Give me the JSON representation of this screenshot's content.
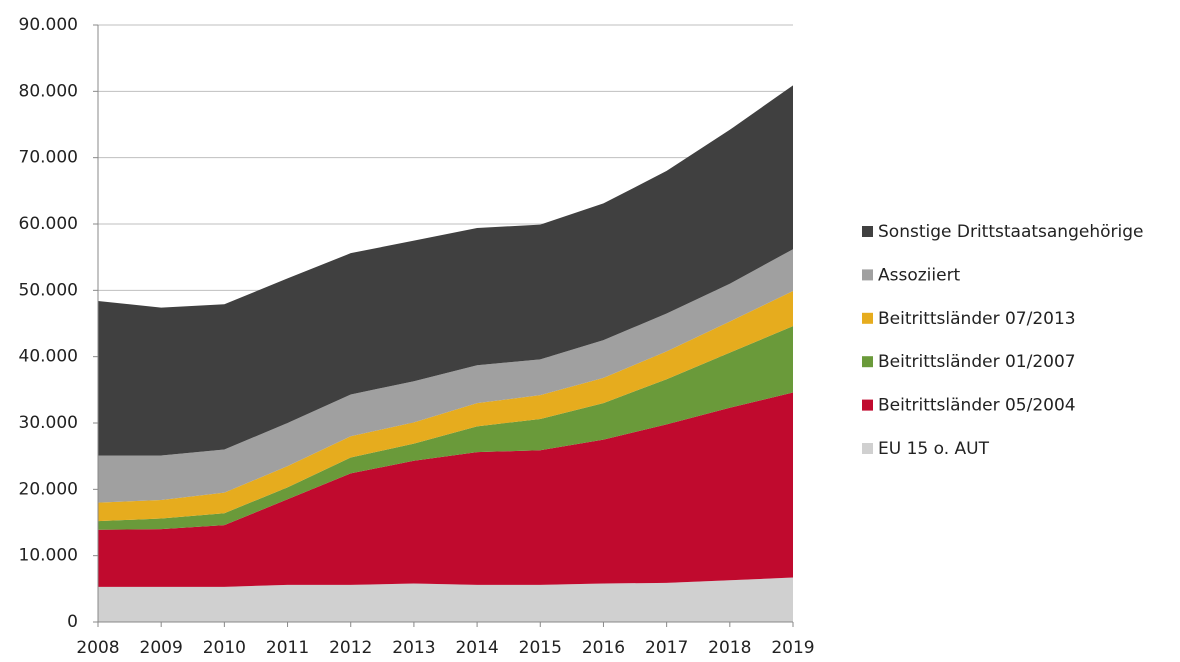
{
  "chart_data": {
    "type": "stacked_area",
    "categories": [
      "2008",
      "2009",
      "2010",
      "2011",
      "2012",
      "2013",
      "2014",
      "2015",
      "2016",
      "2017",
      "2018",
      "2019"
    ],
    "series": [
      {
        "name": "EU 15 o. AUT",
        "color": "#d0d0d0",
        "values": [
          5300,
          5300,
          5300,
          5600,
          5600,
          5800,
          5600,
          5600,
          5800,
          5900,
          6300,
          6700
        ]
      },
      {
        "name": "Beitrittsländer 05/2004",
        "color": "#c00a2e",
        "values": [
          8600,
          8700,
          9300,
          12900,
          16800,
          18500,
          20000,
          20300,
          21700,
          23900,
          26000,
          27900
        ]
      },
      {
        "name": "Beitrittsländer 01/2007",
        "color": "#6a9a3a",
        "values": [
          1300,
          1600,
          1800,
          1800,
          2400,
          2600,
          3900,
          4700,
          5500,
          6800,
          8300,
          10000
        ]
      },
      {
        "name": "Beitrittsländer 07/2013",
        "color": "#e6ac1e",
        "values": [
          2800,
          2800,
          3100,
          3200,
          3200,
          3200,
          3500,
          3600,
          3800,
          4200,
          4700,
          5300
        ]
      },
      {
        "name": "Assoziiert",
        "color": "#a0a0a0",
        "values": [
          7100,
          6700,
          6500,
          6500,
          6300,
          6200,
          5700,
          5400,
          5700,
          5700,
          5700,
          6300
        ]
      },
      {
        "name": "Sonstige Drittstaatsangehörige",
        "color": "#404040",
        "values": [
          23300,
          22300,
          21900,
          21800,
          21300,
          21200,
          20700,
          20300,
          20600,
          21500,
          23200,
          24700
        ]
      }
    ],
    "ylim": [
      0,
      90000
    ],
    "yticks": [
      0,
      {
        "value": 10000,
        "label": "10.000"
      },
      {
        "value": 20000,
        "label": "20.000"
      },
      {
        "value": 30000,
        "label": "30.000"
      },
      {
        "value": 40000,
        "label": "40.000"
      },
      {
        "value": 50000,
        "label": "50.000"
      },
      {
        "value": 60000,
        "label": "60.000"
      },
      {
        "value": 70000,
        "label": "70.000"
      },
      {
        "value": 80000,
        "label": "80.000"
      },
      {
        "value": 90000,
        "label": "90.000"
      }
    ],
    "grid": true
  }
}
